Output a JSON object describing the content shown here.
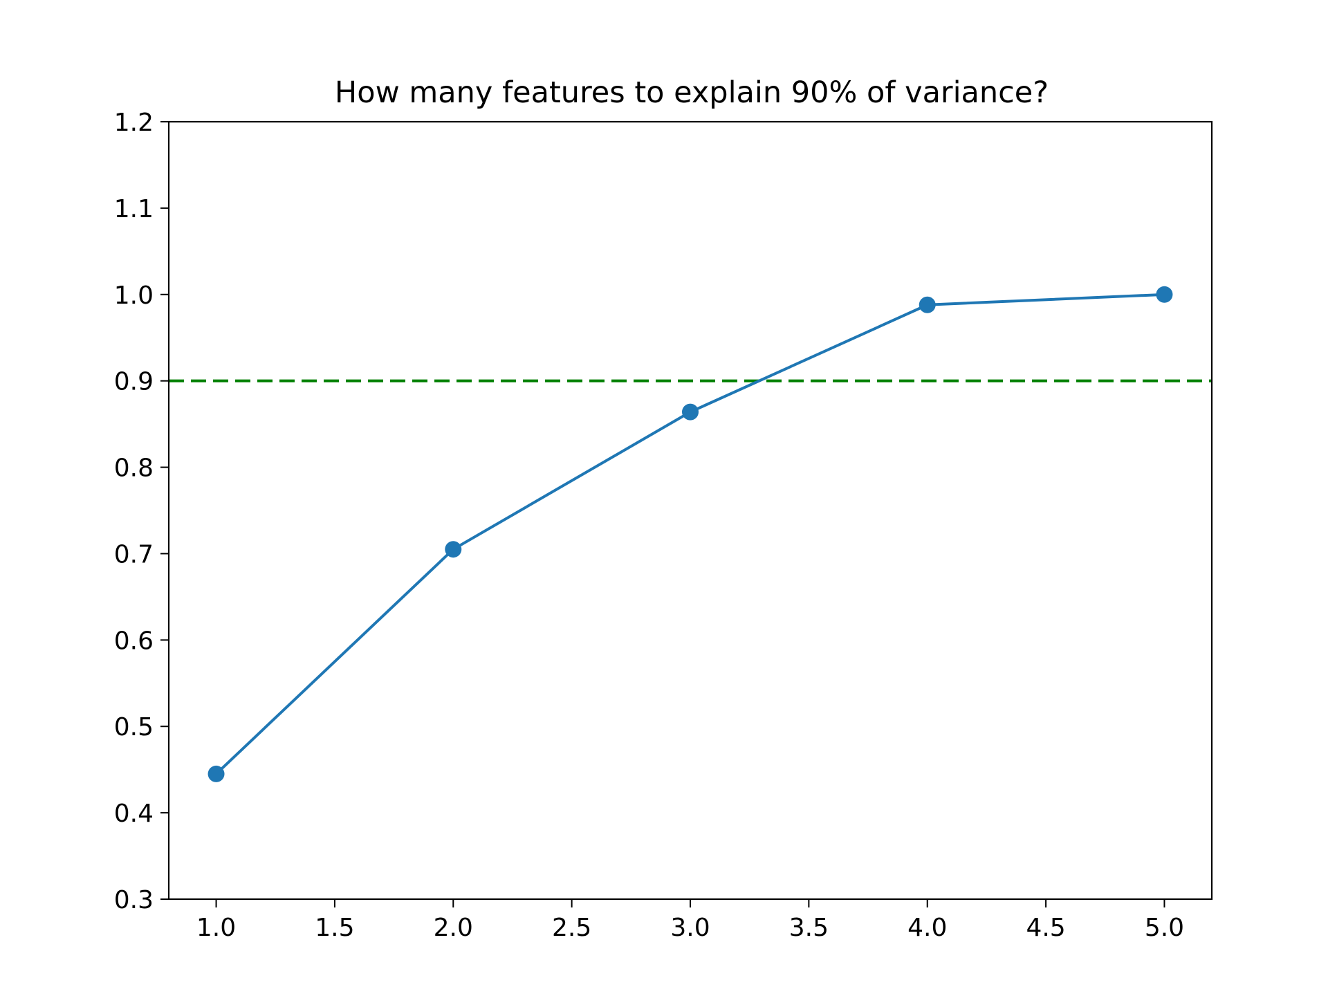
{
  "chart_data": {
    "type": "line",
    "title": "How many features to explain 90% of variance?",
    "xlabel": "",
    "ylabel": "",
    "xlim": [
      0.8,
      5.2
    ],
    "ylim": [
      0.3,
      1.2
    ],
    "x_ticks": [
      1.0,
      1.5,
      2.0,
      2.5,
      3.0,
      3.5,
      4.0,
      4.5,
      5.0
    ],
    "x_tick_labels": [
      "1.0",
      "1.5",
      "2.0",
      "2.5",
      "3.0",
      "3.5",
      "4.0",
      "4.5",
      "5.0"
    ],
    "y_ticks": [
      0.3,
      0.4,
      0.5,
      0.6,
      0.7,
      0.8,
      0.9,
      1.0,
      1.1,
      1.2
    ],
    "y_tick_labels": [
      "0.3",
      "0.4",
      "0.5",
      "0.6",
      "0.7",
      "0.8",
      "0.9",
      "1.0",
      "1.1",
      "1.2"
    ],
    "grid": false,
    "series": [
      {
        "x": [
          1,
          2,
          3,
          4,
          5
        ],
        "values": [
          0.445,
          0.705,
          0.864,
          0.988,
          1.0
        ],
        "color": "#1f77b4",
        "marker": "circle"
      }
    ],
    "reference_lines": [
      {
        "orientation": "horizontal",
        "y": 0.9,
        "color": "#008000",
        "style": "dashed"
      }
    ]
  }
}
